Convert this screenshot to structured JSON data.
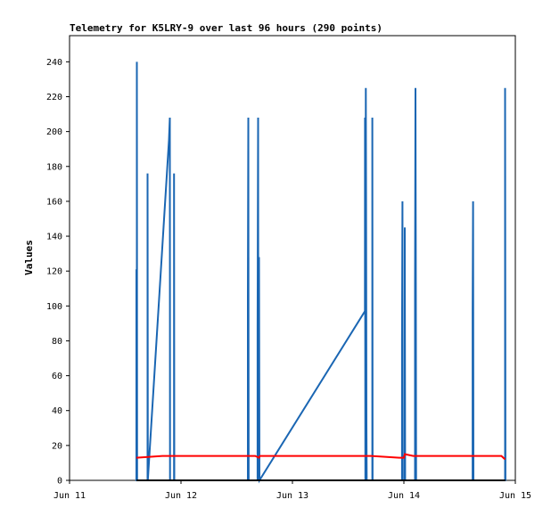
{
  "chart_data": {
    "type": "line",
    "title": "Telemetry for K5LRY-9 over last 96 hours (290 points)",
    "xlabel": "",
    "ylabel": "Values",
    "x_range_days": [
      "Jun 11",
      "Jun 15"
    ],
    "x_tick_labels": [
      "Jun 11",
      "Jun 12",
      "Jun 13",
      "Jun 14",
      "Jun 15"
    ],
    "ylim": [
      0,
      255
    ],
    "y_ticks": [
      0,
      20,
      40,
      60,
      80,
      100,
      120,
      140,
      160,
      180,
      200,
      220,
      240
    ],
    "grid": false,
    "legend": "none",
    "series": [
      {
        "color": "#1a66b3",
        "points": [
          [
            "2024-06-11T14:24",
            0
          ],
          [
            "2024-06-11T14:24",
            121
          ],
          [
            "2024-06-11T14:26",
            0
          ],
          [
            "2024-06-11T14:30",
            0
          ],
          [
            "2024-06-11T14:30",
            240
          ],
          [
            "2024-06-11T14:33",
            0
          ],
          [
            "2024-06-11T16:48",
            0
          ],
          [
            "2024-06-11T16:48",
            176
          ],
          [
            "2024-06-11T16:52",
            0
          ],
          [
            "2024-06-11T21:24",
            195
          ],
          [
            "2024-06-11T21:36",
            208
          ],
          [
            "2024-06-11T21:38",
            0
          ],
          [
            "2024-06-11T22:30",
            0
          ],
          [
            "2024-06-11T22:30",
            176
          ],
          [
            "2024-06-11T22:34",
            0
          ],
          [
            "2024-06-12T14:24",
            0
          ],
          [
            "2024-06-12T14:24",
            104
          ],
          [
            "2024-06-12T14:30",
            208
          ],
          [
            "2024-06-12T14:34",
            0
          ],
          [
            "2024-06-12T16:30",
            0
          ],
          [
            "2024-06-12T16:30",
            88
          ],
          [
            "2024-06-12T16:36",
            208
          ],
          [
            "2024-06-12T16:40",
            0
          ],
          [
            "2024-06-12T16:48",
            128
          ],
          [
            "2024-06-12T16:54",
            0
          ],
          [
            "2024-06-13T15:36",
            97
          ],
          [
            "2024-06-13T15:38",
            208
          ],
          [
            "2024-06-13T15:42",
            0
          ],
          [
            "2024-06-13T15:48",
            225
          ],
          [
            "2024-06-13T15:52",
            160
          ],
          [
            "2024-06-13T15:56",
            32
          ],
          [
            "2024-06-13T16:00",
            0
          ],
          [
            "2024-06-13T17:12",
            0
          ],
          [
            "2024-06-13T17:12",
            208
          ],
          [
            "2024-06-13T17:16",
            0
          ],
          [
            "2024-06-13T23:36",
            0
          ],
          [
            "2024-06-13T23:36",
            80
          ],
          [
            "2024-06-13T23:42",
            160
          ],
          [
            "2024-06-13T23:46",
            0
          ],
          [
            "2024-06-14T00:12",
            0
          ],
          [
            "2024-06-14T00:12",
            145
          ],
          [
            "2024-06-14T00:16",
            0
          ],
          [
            "2024-06-14T02:24",
            0
          ],
          [
            "2024-06-14T02:24",
            112
          ],
          [
            "2024-06-14T02:30",
            225
          ],
          [
            "2024-06-14T02:34",
            112
          ],
          [
            "2024-06-14T02:38",
            0
          ],
          [
            "2024-06-14T14:48",
            0
          ],
          [
            "2024-06-14T14:48",
            96
          ],
          [
            "2024-06-14T14:54",
            160
          ],
          [
            "2024-06-14T14:58",
            0
          ],
          [
            "2024-06-14T21:48",
            0
          ],
          [
            "2024-06-14T21:48",
            225
          ],
          [
            "2024-06-14T21:52",
            0
          ]
        ]
      },
      {
        "color": "#ff0000",
        "points": [
          [
            "2024-06-11T14:24",
            13
          ],
          [
            "2024-06-11T20:00",
            14
          ],
          [
            "2024-06-12T16:00",
            14
          ],
          [
            "2024-06-12T16:48",
            13
          ],
          [
            "2024-06-12T17:00",
            14
          ],
          [
            "2024-06-13T17:00",
            14
          ],
          [
            "2024-06-13T23:00",
            13
          ],
          [
            "2024-06-14T00:00",
            13
          ],
          [
            "2024-06-14T00:12",
            15
          ],
          [
            "2024-06-14T02:00",
            14
          ],
          [
            "2024-06-14T21:00",
            14
          ],
          [
            "2024-06-14T21:48",
            12
          ]
        ]
      },
      {
        "color": "#000000",
        "points": [
          [
            "2024-06-11T14:24",
            0
          ],
          [
            "2024-06-14T21:52",
            0
          ]
        ]
      }
    ]
  }
}
